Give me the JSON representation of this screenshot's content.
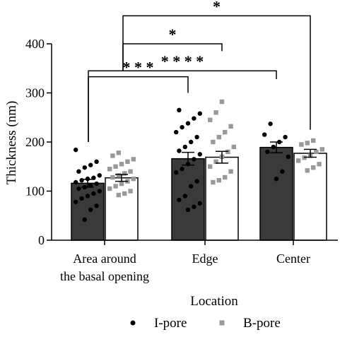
{
  "chart_data": {
    "type": "bar",
    "title": "",
    "xlabel": "Location",
    "ylabel": "Thickness (nm)",
    "ylim": [
      0,
      400
    ],
    "yticks": [
      "0",
      "100",
      "200",
      "300",
      "400"
    ],
    "categories": [
      [
        "Area around",
        "the basal opening"
      ],
      [
        "Edge"
      ],
      [
        "Center"
      ]
    ],
    "series": [
      {
        "name": "I-pore",
        "color": "#3a3a3a",
        "marker": "circle",
        "marker_color": "#000000",
        "values": [
          116,
          166,
          189
        ],
        "sem": [
          8,
          13,
          11
        ],
        "points": [
          [
            184,
            160,
            153,
            148,
            140,
            132,
            127,
            125,
            122,
            118,
            115,
            112,
            108,
            105,
            100,
            95,
            90,
            85,
            78,
            70,
            62,
            42
          ],
          [
            265,
            258,
            248,
            238,
            230,
            220,
            210,
            200,
            190,
            182,
            175,
            165,
            155,
            145,
            138,
            120,
            110,
            90,
            82,
            75,
            68,
            62
          ],
          [
            237,
            215,
            210,
            200,
            190,
            180,
            170,
            140,
            125
          ]
        ]
      },
      {
        "name": "B-pore",
        "color": "#ffffff",
        "marker": "square",
        "marker_color": "#999999",
        "values": [
          127,
          169,
          177
        ],
        "sem": [
          7,
          12,
          8
        ],
        "points": [
          [
            178,
            172,
            165,
            160,
            155,
            150,
            145,
            140,
            136,
            132,
            128,
            125,
            120,
            115,
            110,
            105,
            100,
            95,
            92
          ],
          [
            282,
            260,
            245,
            232,
            220,
            210,
            200,
            190,
            180,
            170,
            160,
            150,
            140,
            128,
            122,
            118
          ],
          [
            203,
            198,
            195,
            185,
            180,
            172,
            168,
            162,
            155,
            148,
            142
          ]
        ]
      }
    ],
    "significance": [
      {
        "label": "* * *",
        "from": [
          0,
          0
        ],
        "to": [
          1,
          0
        ],
        "y": 333
      },
      {
        "label": "* * * *",
        "from": [
          0,
          0
        ],
        "to": [
          2,
          0
        ],
        "y": 345
      },
      {
        "label": "*",
        "from": [
          0,
          1
        ],
        "to": [
          1,
          1
        ],
        "y": 400
      },
      {
        "label": "*",
        "from": [
          0,
          1
        ],
        "to": [
          2,
          1
        ],
        "y": 457
      }
    ]
  }
}
